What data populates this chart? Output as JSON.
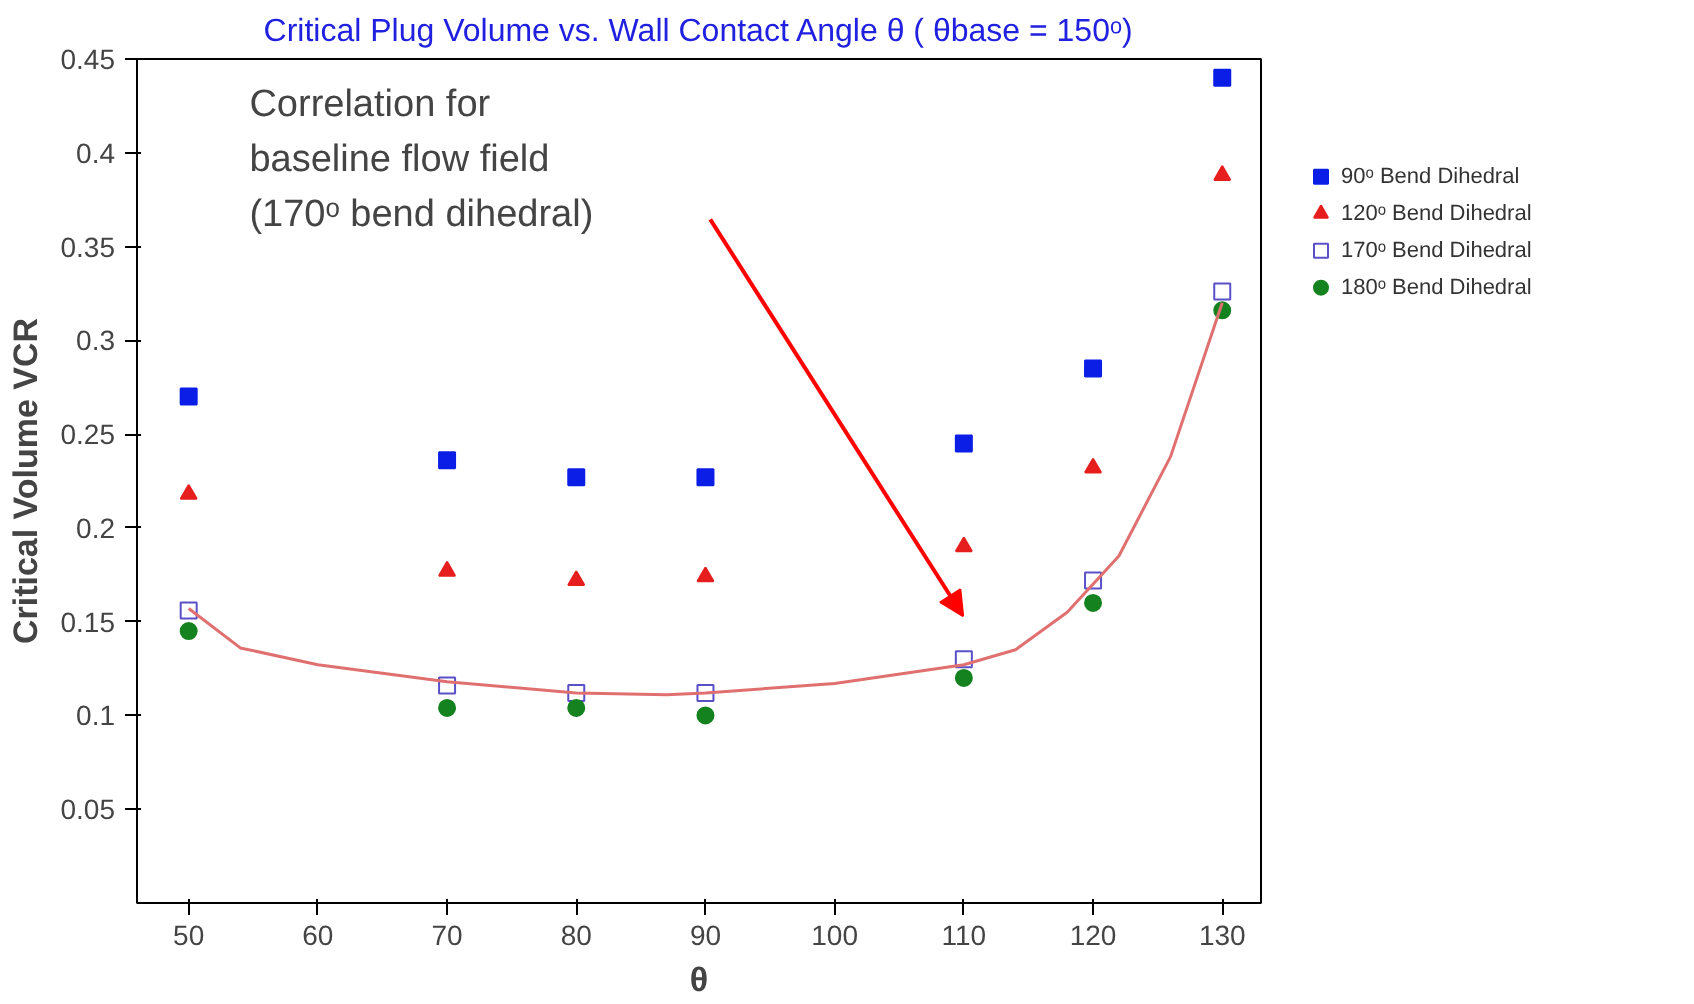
{
  "chart_data": {
    "type": "scatter",
    "title": "Critical Plug Volume vs. Wall Contact Angle θ ( θbase = 150ᵒ)",
    "xlabel": "θ",
    "ylabel": "Critical Volume VCR",
    "x": [
      50,
      70,
      80,
      90,
      110,
      120,
      130
    ],
    "series": [
      {
        "name": "90ᵒ Bend Dihedral",
        "color": "#0a1ee6",
        "marker": "square",
        "values": [
          0.27,
          0.236,
          0.227,
          0.227,
          0.245,
          0.285,
          0.44
        ]
      },
      {
        "name": "120ᵒ Bend Dihedral",
        "color": "#e61e1e",
        "marker": "triangle",
        "values": [
          0.218,
          0.177,
          0.172,
          0.174,
          0.19,
          0.232,
          0.388
        ]
      },
      {
        "name": "170ᵒ Bend Dihedral",
        "color": "#5a50c8",
        "marker": "square",
        "values": [
          0.156,
          0.116,
          0.112,
          0.112,
          0.13,
          0.172,
          0.326
        ]
      },
      {
        "name": "180ᵒ Bend Dihedral",
        "color": "#14821e",
        "marker": "circle",
        "values": [
          0.145,
          0.104,
          0.104,
          0.1,
          0.12,
          0.16,
          0.316
        ]
      },
      {
        "type": "line",
        "color": "#e07070",
        "x": [
          50,
          54,
          60,
          70,
          80,
          87,
          90,
          100,
          110,
          114,
          118,
          122,
          126,
          130
        ],
        "values": [
          0.157,
          0.136,
          0.127,
          0.118,
          0.112,
          0.111,
          0.112,
          0.117,
          0.127,
          0.135,
          0.155,
          0.185,
          0.238,
          0.32
        ]
      }
    ],
    "annotations": [
      "Correlation for baseline flow field (170ᵒ bend dihedral)"
    ],
    "xlim": [
      46,
      133
    ],
    "ylim": [
      0,
      0.45
    ],
    "xticks": [
      50,
      60,
      70,
      80,
      90,
      100,
      110,
      120,
      130
    ],
    "yticks": [
      0.05,
      0.1,
      0.15,
      0.2,
      0.25,
      0.3,
      0.35,
      0.4,
      0.45
    ],
    "grid": false,
    "legend": "top right"
  }
}
